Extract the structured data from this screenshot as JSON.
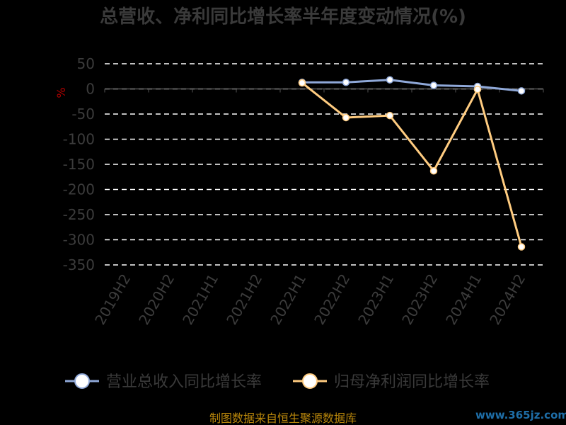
{
  "chart_data": {
    "type": "line",
    "title": "总营收、净利同比增长率半年度变动情况(%)",
    "ylabel": "%",
    "categories": [
      "2019H2",
      "2020H2",
      "2021H1",
      "2021H2",
      "2022H1",
      "2022H2",
      "2023H1",
      "2023H2",
      "2024H1",
      "2024H2"
    ],
    "ylim": [
      -350,
      50
    ],
    "yticks": [
      50,
      0,
      -50,
      -100,
      -150,
      -200,
      -250,
      -300,
      -350
    ],
    "grid": true,
    "legend_position": "bottom",
    "series": [
      {
        "name": "营业总收入同比增长率",
        "color": "#8fa8d8",
        "values": [
          null,
          null,
          null,
          null,
          13,
          13,
          18,
          7,
          5,
          -4
        ]
      },
      {
        "name": "归母净利润同比增长率",
        "color": "#ffcc80",
        "values": [
          null,
          null,
          null,
          null,
          12,
          -57,
          -53,
          -163,
          -1,
          -314
        ]
      }
    ]
  },
  "footer": {
    "source": "制图数据来自恒生聚源数据库",
    "watermark": "www.365jz.com"
  },
  "colors": {
    "background": "#000000",
    "grid": "#ffffff",
    "axis": "#555555"
  }
}
